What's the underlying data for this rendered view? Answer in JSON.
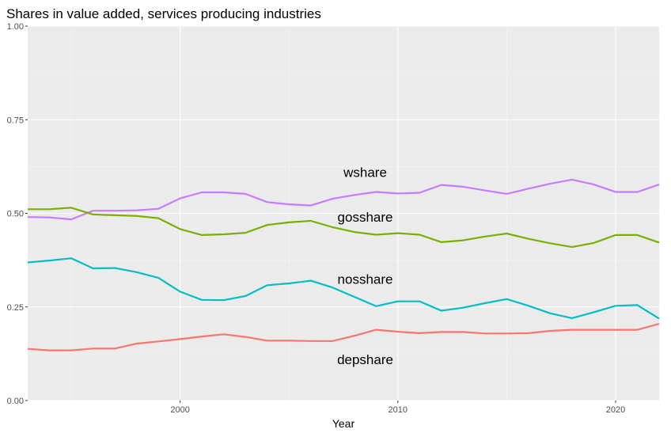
{
  "chart_data": {
    "type": "line",
    "title": "Shares in value added, services producing industries",
    "xlabel": "Year",
    "ylabel": "",
    "xlim": [
      1993,
      2022
    ],
    "ylim": [
      0,
      1
    ],
    "x_ticks": [
      2000,
      2010,
      2020
    ],
    "y_ticks": [
      0,
      0.25,
      0.5,
      0.75,
      1
    ],
    "y_tick_labels": [
      "0.00",
      "0.25",
      "0.50",
      "0.75",
      "1.00"
    ],
    "grid": true,
    "legend": "none",
    "x": [
      1993,
      1994,
      1995,
      1996,
      1997,
      1998,
      1999,
      2000,
      2001,
      2002,
      2003,
      2004,
      2005,
      2006,
      2007,
      2008,
      2009,
      2010,
      2011,
      2012,
      2013,
      2014,
      2015,
      2016,
      2017,
      2018,
      2019,
      2020,
      2021,
      2022
    ],
    "series": [
      {
        "name": "wshare",
        "color": "#C77CFF",
        "label_at": [
          2008.5,
          0.61
        ],
        "values": [
          0.49,
          0.489,
          0.484,
          0.507,
          0.507,
          0.508,
          0.512,
          0.54,
          0.556,
          0.556,
          0.552,
          0.53,
          0.524,
          0.521,
          0.539,
          0.549,
          0.557,
          0.553,
          0.555,
          0.576,
          0.571,
          0.561,
          0.552,
          0.566,
          0.579,
          0.59,
          0.577,
          0.557,
          0.557,
          0.577
        ]
      },
      {
        "name": "gosshare",
        "color": "#7CAE00",
        "label_at": [
          2008.5,
          0.49
        ],
        "values": [
          0.511,
          0.511,
          0.515,
          0.497,
          0.495,
          0.493,
          0.487,
          0.458,
          0.442,
          0.444,
          0.448,
          0.469,
          0.476,
          0.48,
          0.463,
          0.45,
          0.443,
          0.447,
          0.443,
          0.423,
          0.428,
          0.438,
          0.446,
          0.432,
          0.42,
          0.41,
          0.421,
          0.442,
          0.442,
          0.422
        ]
      },
      {
        "name": "nosshare",
        "color": "#00BFC4",
        "label_at": [
          2008.5,
          0.325
        ],
        "values": [
          0.369,
          0.374,
          0.38,
          0.353,
          0.354,
          0.343,
          0.328,
          0.291,
          0.269,
          0.268,
          0.279,
          0.308,
          0.313,
          0.32,
          0.302,
          0.277,
          0.252,
          0.265,
          0.265,
          0.24,
          0.248,
          0.26,
          0.271,
          0.253,
          0.233,
          0.22,
          0.236,
          0.253,
          0.255,
          0.219
        ]
      },
      {
        "name": "depshare",
        "color": "#F8766D",
        "label_at": [
          2008.5,
          0.11
        ],
        "values": [
          0.138,
          0.134,
          0.134,
          0.139,
          0.139,
          0.152,
          0.158,
          0.164,
          0.171,
          0.177,
          0.17,
          0.16,
          0.16,
          0.159,
          0.159,
          0.173,
          0.189,
          0.184,
          0.18,
          0.183,
          0.183,
          0.179,
          0.179,
          0.18,
          0.186,
          0.189,
          0.189,
          0.189,
          0.189,
          0.205
        ]
      }
    ]
  }
}
